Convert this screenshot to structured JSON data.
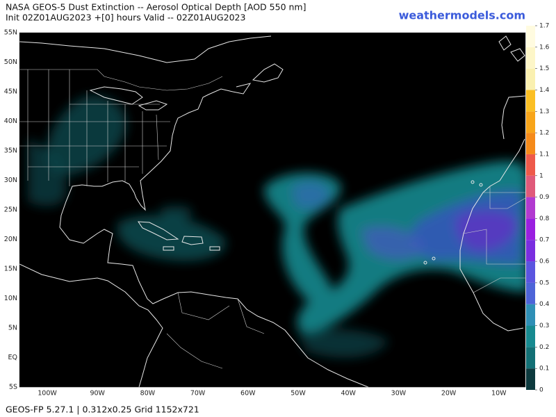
{
  "header": {
    "title": "NASA GEOS-5 Dust Extinction -- Aerosol Optical Depth [AOD 550 nm]",
    "subtitle": "Init 02Z01AUG2023 +[0] hours Valid -- 02Z01AUG2023",
    "brand": "weathermodels.com"
  },
  "map": {
    "lat_labels": [
      "55N",
      "50N",
      "45N",
      "40N",
      "35N",
      "30N",
      "25N",
      "20N",
      "15N",
      "10N",
      "5N",
      "EQ",
      "5S"
    ],
    "lon_labels": [
      "100W",
      "90W",
      "80W",
      "70W",
      "60W",
      "50W",
      "40W",
      "30W",
      "20W",
      "10W"
    ]
  },
  "colorbar": {
    "ticks": [
      0,
      0.1,
      0.2,
      0.3,
      0.4,
      0.5,
      0.6,
      0.7,
      0.8,
      0.9,
      1,
      1.1,
      1.2,
      1.3,
      1.4,
      1.5,
      1.6,
      1.7
    ]
  },
  "footer": "GEOS-FP 5.27.1 | 0.312x0.25 Grid 1152x721"
}
